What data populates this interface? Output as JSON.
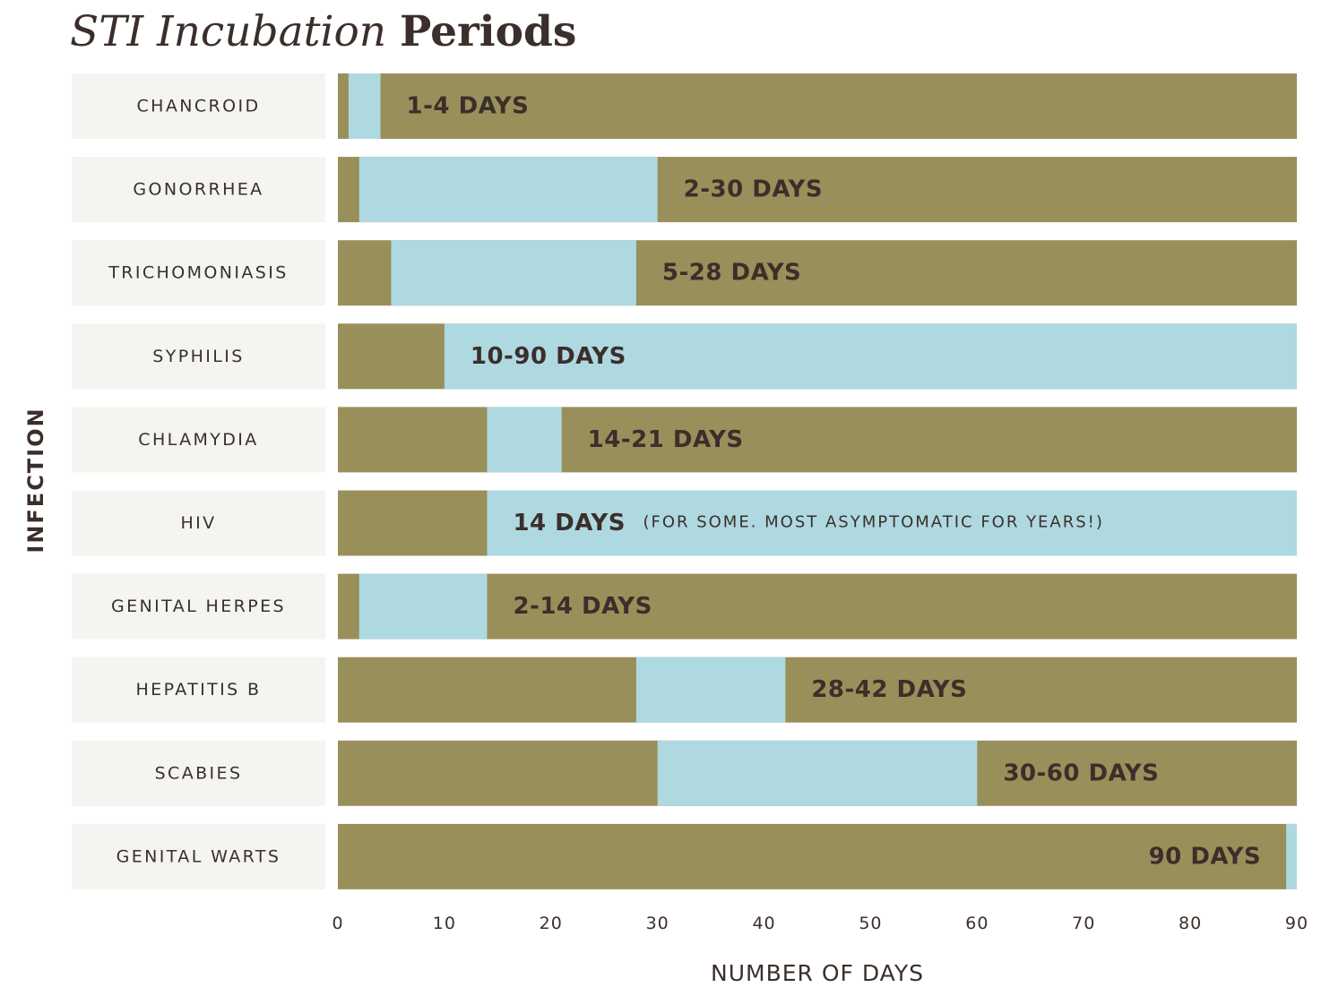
{
  "title": {
    "italic": "STI Incubation",
    "bold": "Periods"
  },
  "colors": {
    "track": "#998f5a",
    "range": "#afd9e1",
    "label_bg": "#f4f4f0",
    "text": "#3b2f2b"
  },
  "chart_data": {
    "type": "bar",
    "orientation": "horizontal",
    "ylabel": "INFECTION",
    "xlabel": "NUMBER OF DAYS",
    "xlim": [
      0,
      90
    ],
    "xticks": [
      0,
      10,
      20,
      30,
      40,
      50,
      60,
      70,
      80,
      90
    ],
    "grid": false,
    "categories": [
      "CHANCROID",
      "GONORRHEA",
      "TRICHOMONIASIS",
      "SYPHILIS",
      "CHLAMYDIA",
      "HIV",
      "GENITAL HERPES",
      "HEPATITIS B",
      "SCABIES",
      "GENITAL WARTS"
    ],
    "ranges": [
      {
        "category": "CHANCROID",
        "start": 1,
        "end": 4,
        "label": "1-4 DAYS"
      },
      {
        "category": "GONORRHEA",
        "start": 2,
        "end": 30,
        "label": "2-30 DAYS"
      },
      {
        "category": "TRICHOMONIASIS",
        "start": 5,
        "end": 28,
        "label": "5-28 DAYS"
      },
      {
        "category": "SYPHILIS",
        "start": 10,
        "end": 90,
        "label": "10-90 DAYS"
      },
      {
        "category": "CHLAMYDIA",
        "start": 14,
        "end": 21,
        "label": "14-21 DAYS"
      },
      {
        "category": "HIV",
        "start": 14,
        "end": 90,
        "label": "14 DAYS",
        "note": "(FOR SOME. MOST ASYMPTOMATIC FOR YEARS!)"
      },
      {
        "category": "GENITAL HERPES",
        "start": 2,
        "end": 14,
        "label": "2-14 DAYS"
      },
      {
        "category": "HEPATITIS B",
        "start": 28,
        "end": 42,
        "label": "28-42 DAYS"
      },
      {
        "category": "SCABIES",
        "start": 30,
        "end": 60,
        "label": "30-60 DAYS"
      },
      {
        "category": "GENITAL WARTS",
        "start": 89,
        "end": 90,
        "label": "90 DAYS"
      }
    ]
  }
}
